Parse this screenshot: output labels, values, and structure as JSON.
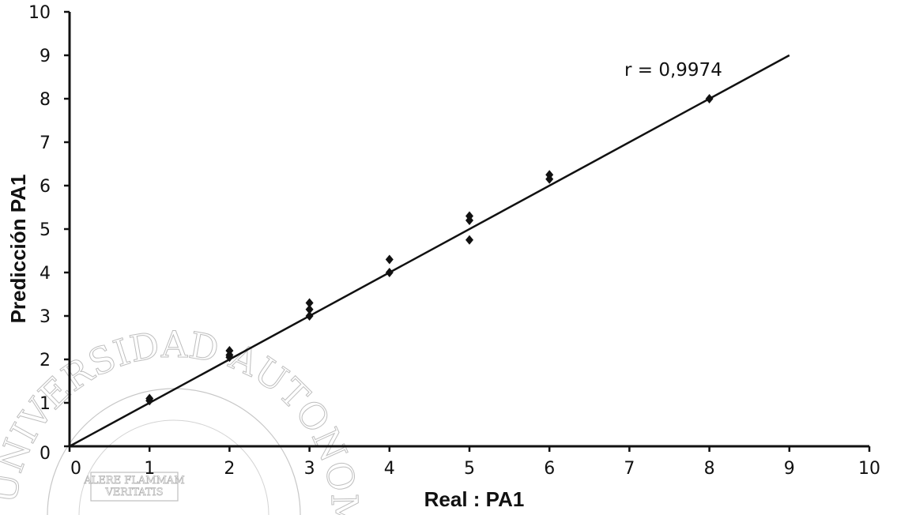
{
  "chart_data": {
    "type": "scatter",
    "title": "",
    "xlabel": "Real : PA1",
    "ylabel": "Predicción PA1",
    "xlim": [
      0,
      10
    ],
    "ylim": [
      0,
      10
    ],
    "x_ticks": [
      "0",
      "1",
      "2",
      "3",
      "4",
      "5",
      "6",
      "7",
      "8",
      "9",
      "10"
    ],
    "y_ticks": [
      "0",
      "1",
      "2",
      "3",
      "4",
      "5",
      "6",
      "7",
      "8",
      "9",
      "10"
    ],
    "grid": false,
    "legend": "none",
    "points": [
      {
        "x": 1,
        "y": 1.1
      },
      {
        "x": 1,
        "y": 1.05
      },
      {
        "x": 2,
        "y": 2.2
      },
      {
        "x": 2,
        "y": 2.1
      },
      {
        "x": 2,
        "y": 2.05
      },
      {
        "x": 3,
        "y": 3.3
      },
      {
        "x": 3,
        "y": 3.15
      },
      {
        "x": 3,
        "y": 3.0
      },
      {
        "x": 4,
        "y": 4.3
      },
      {
        "x": 4,
        "y": 4.0
      },
      {
        "x": 5,
        "y": 5.3
      },
      {
        "x": 5,
        "y": 5.2
      },
      {
        "x": 5,
        "y": 4.75
      },
      {
        "x": 6,
        "y": 6.25
      },
      {
        "x": 6,
        "y": 6.15
      },
      {
        "x": 8,
        "y": 8.0
      }
    ],
    "fit_line": {
      "x": [
        0,
        9
      ],
      "y": [
        0,
        9
      ]
    },
    "annotation": "r = 0,9974",
    "colors": {
      "points": "#111111",
      "line": "#111111",
      "axis": "#111111"
    }
  },
  "watermark": {
    "seal_top": "UNIVERSIDAD AUTONOMA DE NUEVO LEON",
    "motto_line1": "ALERE FLAMMAM",
    "motto_line2": "VERITATIS"
  }
}
